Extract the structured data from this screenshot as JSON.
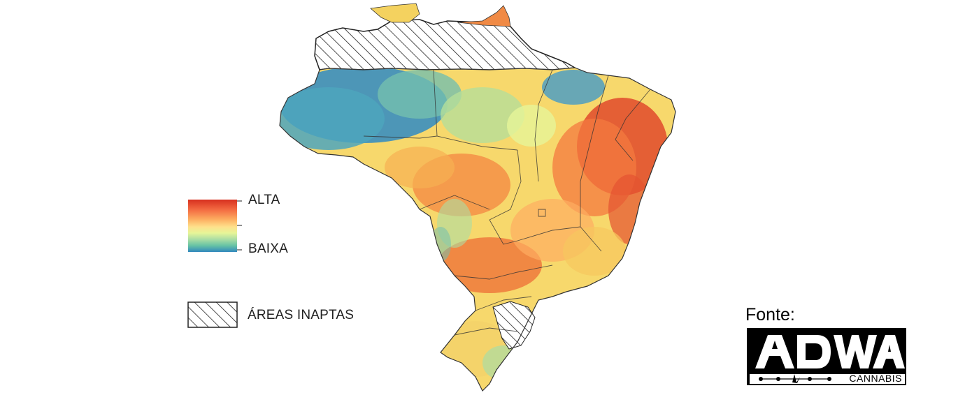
{
  "legend": {
    "high_label": "ALTA",
    "low_label": "BAIXA",
    "unsuitable_label": "ÁREAS INAPTAS",
    "gradient_colors": [
      "#d7301f",
      "#f46d43",
      "#fdae61",
      "#fee08b",
      "#e6f598",
      "#abdda4",
      "#66c2a5",
      "#3288bd"
    ]
  },
  "source": {
    "label": "Fonte:",
    "logo_text": "ADWA",
    "logo_subtext": "CANNABIS"
  },
  "colors": {
    "high": "#d7301f",
    "medium": "#fee08b",
    "low": "#3288bd",
    "hatch": "#222222"
  }
}
